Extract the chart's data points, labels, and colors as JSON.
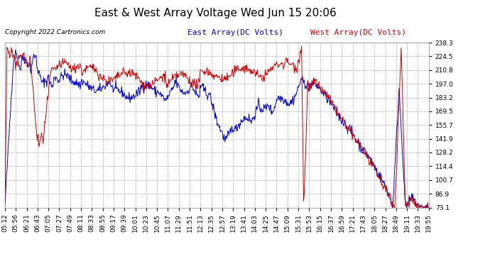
{
  "title": "East & West Array Voltage Wed Jun 15 20:06",
  "copyright": "Copyright 2022 Cartronics.com",
  "legend_east": "East Array(DC Volts)",
  "legend_west": "West Array(DC Volts)",
  "east_color": "#0000cc",
  "west_color": "#cc0000",
  "yticks": [
    73.1,
    86.9,
    100.7,
    114.4,
    128.2,
    141.9,
    155.7,
    169.5,
    183.2,
    197.0,
    210.8,
    224.5,
    238.3
  ],
  "ymin": 73.1,
  "ymax": 238.3,
  "xtick_labels": [
    "05:12",
    "05:56",
    "06:21",
    "06:43",
    "07:05",
    "07:27",
    "07:49",
    "08:11",
    "08:33",
    "08:55",
    "09:17",
    "09:39",
    "10:01",
    "10:23",
    "10:45",
    "11:07",
    "11:29",
    "11:51",
    "12:13",
    "12:35",
    "12:57",
    "13:19",
    "13:41",
    "14:03",
    "14:25",
    "14:47",
    "15:09",
    "15:31",
    "15:53",
    "16:15",
    "16:37",
    "16:59",
    "17:21",
    "17:43",
    "18:05",
    "18:27",
    "18:49",
    "19:11",
    "19:33",
    "19:55"
  ],
  "background_color": "#ffffff",
  "grid_color": "#aaaaaa",
  "title_fontsize": 11,
  "tick_fontsize": 6.5,
  "legend_fontsize": 8,
  "copyright_fontsize": 6.5
}
